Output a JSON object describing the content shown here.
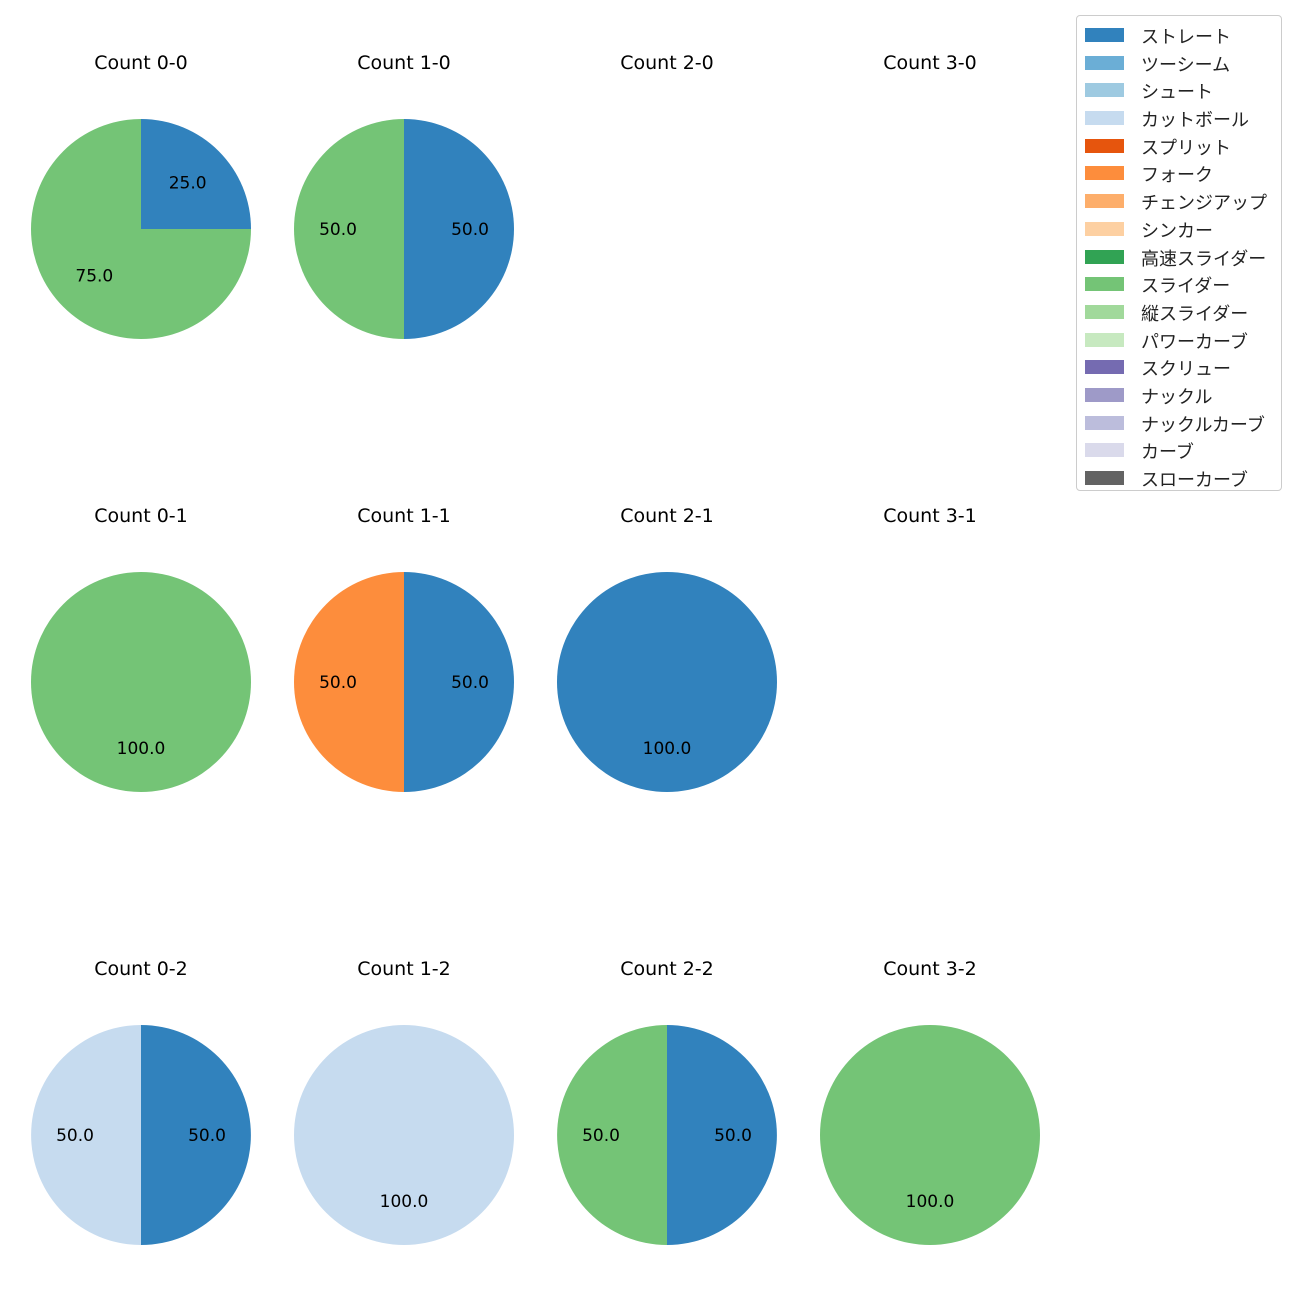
{
  "chart_data": {
    "type": "pie",
    "legend": {
      "placement": "top-right",
      "entries": [
        {
          "name": "ストレート",
          "color": "#3182bd"
        },
        {
          "name": "ツーシーム",
          "color": "#6baed6"
        },
        {
          "name": "シュート",
          "color": "#9ecae1"
        },
        {
          "name": "カットボール",
          "color": "#c6dbef"
        },
        {
          "name": "スプリット",
          "color": "#e6550d"
        },
        {
          "name": "フォーク",
          "color": "#fd8d3c"
        },
        {
          "name": "チェンジアップ",
          "color": "#fdae6b"
        },
        {
          "name": "シンカー",
          "color": "#fdd0a2"
        },
        {
          "name": "高速スライダー",
          "color": "#31a354"
        },
        {
          "name": "スライダー",
          "color": "#74c476"
        },
        {
          "name": "縦スライダー",
          "color": "#a1d99b"
        },
        {
          "name": "パワーカーブ",
          "color": "#c7e9c0"
        },
        {
          "name": "スクリュー",
          "color": "#756bb1"
        },
        {
          "name": "ナックル",
          "color": "#9e9ac8"
        },
        {
          "name": "ナックルカーブ",
          "color": "#bcbddc"
        },
        {
          "name": "カーブ",
          "color": "#dadaeb"
        },
        {
          "name": "スローカーブ",
          "color": "#636363"
        }
      ]
    },
    "panels": [
      {
        "title": "Count 0-0",
        "balls": 0,
        "strikes": 0,
        "slices": [
          {
            "pitch": "ストレート",
            "value": 25.0,
            "label": "25.0"
          },
          {
            "pitch": "スライダー",
            "value": 75.0,
            "label": "75.0"
          }
        ]
      },
      {
        "title": "Count 1-0",
        "balls": 1,
        "strikes": 0,
        "slices": [
          {
            "pitch": "ストレート",
            "value": 50.0,
            "label": "50.0"
          },
          {
            "pitch": "スライダー",
            "value": 50.0,
            "label": "50.0"
          }
        ]
      },
      {
        "title": "Count 2-0",
        "balls": 2,
        "strikes": 0,
        "slices": []
      },
      {
        "title": "Count 3-0",
        "balls": 3,
        "strikes": 0,
        "slices": []
      },
      {
        "title": "Count 0-1",
        "balls": 0,
        "strikes": 1,
        "slices": [
          {
            "pitch": "スライダー",
            "value": 100.0,
            "label": "100.0"
          }
        ]
      },
      {
        "title": "Count 1-1",
        "balls": 1,
        "strikes": 1,
        "slices": [
          {
            "pitch": "ストレート",
            "value": 50.0,
            "label": "50.0"
          },
          {
            "pitch": "フォーク",
            "value": 50.0,
            "label": "50.0"
          }
        ]
      },
      {
        "title": "Count 2-1",
        "balls": 2,
        "strikes": 1,
        "slices": [
          {
            "pitch": "ストレート",
            "value": 100.0,
            "label": "100.0"
          }
        ]
      },
      {
        "title": "Count 3-1",
        "balls": 3,
        "strikes": 1,
        "slices": []
      },
      {
        "title": "Count 0-2",
        "balls": 0,
        "strikes": 2,
        "slices": [
          {
            "pitch": "ストレート",
            "value": 50.0,
            "label": "50.0"
          },
          {
            "pitch": "カットボール",
            "value": 50.0,
            "label": "50.0"
          }
        ]
      },
      {
        "title": "Count 1-2",
        "balls": 1,
        "strikes": 2,
        "slices": [
          {
            "pitch": "カットボール",
            "value": 100.0,
            "label": "100.0"
          }
        ]
      },
      {
        "title": "Count 2-2",
        "balls": 2,
        "strikes": 2,
        "slices": [
          {
            "pitch": "ストレート",
            "value": 50.0,
            "label": "50.0"
          },
          {
            "pitch": "スライダー",
            "value": 50.0,
            "label": "50.0"
          }
        ]
      },
      {
        "title": "Count 3-2",
        "balls": 3,
        "strikes": 2,
        "slices": [
          {
            "pitch": "スライダー",
            "value": 100.0,
            "label": "100.0"
          }
        ]
      }
    ]
  }
}
